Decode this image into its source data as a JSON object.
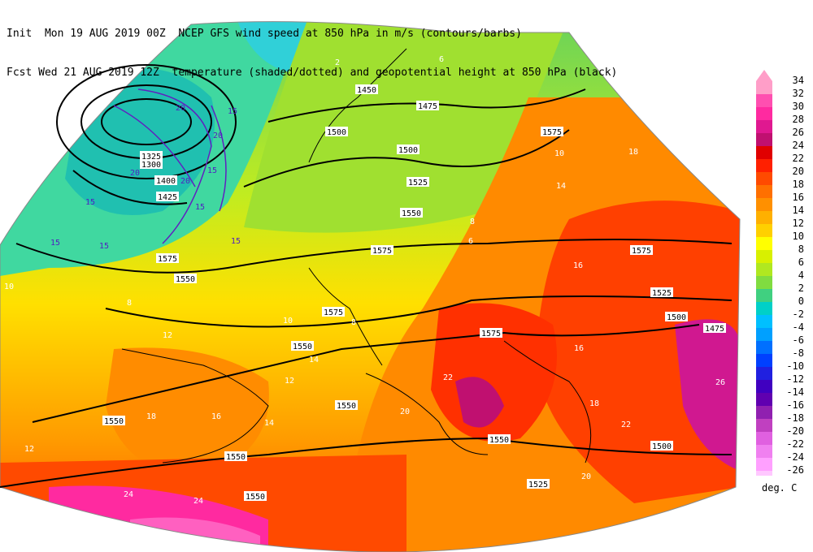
{
  "header": {
    "line1": "Init  Mon 19 AUG 2019 00Z  NCEP GFS wind speed at 850 hPa in m/s (contours/barbs)",
    "line2": "Fcst Wed 21 AUG 2019 12Z  temperature (shaded/dotted) and geopotential height at 850 hPa (black)"
  },
  "colorbar": {
    "units": "deg. C",
    "levels": [
      "34",
      "32",
      "30",
      "28",
      "26",
      "24",
      "22",
      "20",
      "18",
      "16",
      "14",
      "12",
      "10",
      "8",
      "6",
      "4",
      "2",
      "0",
      "-2",
      "-4",
      "-6",
      "-8",
      "-10",
      "-12",
      "-14",
      "-16",
      "-18",
      "-20",
      "-22",
      "-24",
      "-26"
    ],
    "colors": [
      "#ff9ec8",
      "#ff4fb0",
      "#ff2aa0",
      "#e01890",
      "#c01070",
      "#e00000",
      "#ff2000",
      "#ff4a00",
      "#ff7000",
      "#ff9000",
      "#ffb000",
      "#ffd000",
      "#ffff00",
      "#d8f000",
      "#b0e820",
      "#80dc40",
      "#40d080",
      "#00d0c8",
      "#00c0ff",
      "#00a0ff",
      "#0070ff",
      "#0040ff",
      "#2020e0",
      "#4000c0",
      "#6000b0",
      "#9020b0",
      "#c040c0",
      "#e060e0",
      "#f080f0",
      "#ffa0ff",
      "#ffc8ff"
    ]
  },
  "map_labels": {
    "height": [
      "1450",
      "1475",
      "1500",
      "1500",
      "1525",
      "1550",
      "1575",
      "1575",
      "1575",
      "1550",
      "1550",
      "1550",
      "1550",
      "1575",
      "1575",
      "1525",
      "1500",
      "1475",
      "1550",
      "1500",
      "1525",
      "1550",
      "1550",
      "1425",
      "1400",
      "1325",
      "1300",
      "1575"
    ],
    "wind": [
      "20",
      "20",
      "15",
      "15",
      "20",
      "15",
      "15",
      "15",
      "20",
      "15",
      "15"
    ],
    "temp": [
      "2",
      "6",
      "8",
      "10",
      "12",
      "14",
      "16",
      "18",
      "20",
      "22",
      "24",
      "14",
      "12",
      "10",
      "8",
      "16",
      "18",
      "20",
      "22",
      "26",
      "24",
      "18",
      "16",
      "14",
      "12",
      "10",
      "8",
      "6"
    ]
  }
}
